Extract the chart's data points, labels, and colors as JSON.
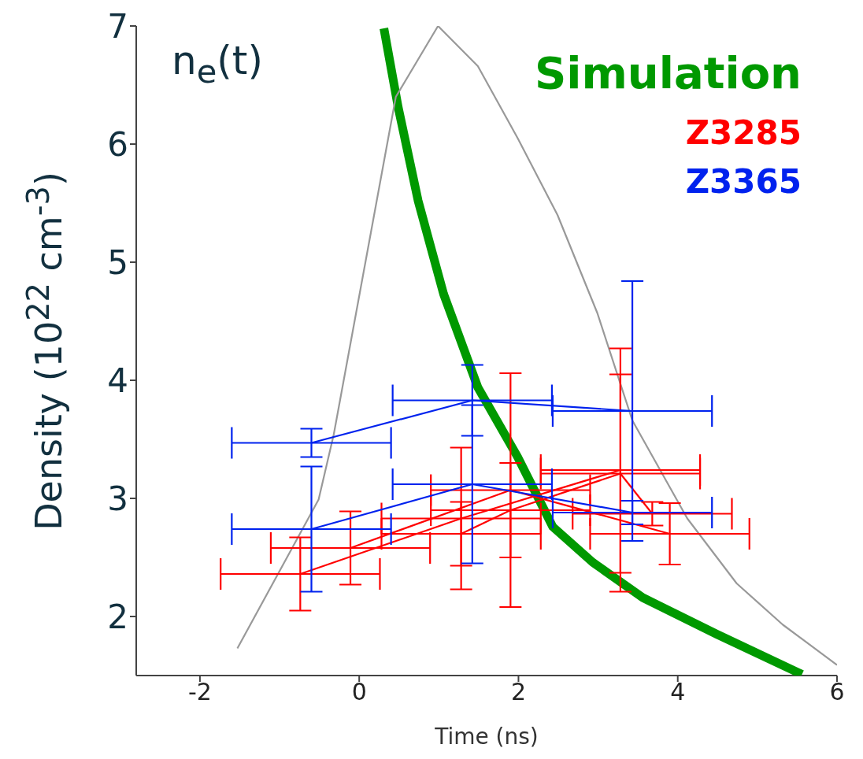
{
  "chart_data": {
    "type": "line",
    "xlabel": "Time (ns)",
    "ylabel": "Density (10$^{22}$ cm$^{-3}$)",
    "annotations": [
      "n$_{e}$(t)"
    ],
    "xlim": [
      -2.8,
      6
    ],
    "ylim": [
      1.5,
      7
    ],
    "xticks": [
      -2,
      0,
      2,
      4,
      6
    ],
    "yticks": [
      2,
      3,
      4,
      5,
      6,
      7
    ],
    "grid": false,
    "legend": "top right",
    "marker": "none",
    "series": [
      {
        "name": "Simulation",
        "color": "#009900",
        "x": [
          0.31,
          0.49,
          0.74,
          1.06,
          1.49,
          1.99,
          2.43,
          2.93,
          3.56,
          4.49,
          5.56
        ],
        "values": [
          6.98,
          6.31,
          5.52,
          4.73,
          3.94,
          3.35,
          2.76,
          2.46,
          2.16,
          1.85,
          1.51
        ]
      },
      {
        "color": "#999999",
        "x": [
          -1.53,
          -0.51,
          -0.32,
          0.46,
          0.99,
          1.49,
          1.99,
          2.49,
          2.99,
          3.43,
          4.12,
          4.74,
          5.32,
          6.0
        ],
        "values": [
          1.73,
          2.99,
          3.54,
          6.4,
          7.0,
          6.66,
          6.05,
          5.4,
          4.57,
          3.66,
          2.83,
          2.28,
          1.93,
          1.59
        ]
      },
      {
        "name": "Z3285",
        "color": "#ff0000",
        "x": [
          -0.74,
          1.28,
          3.28
        ],
        "values": [
          2.36,
          2.83,
          3.24
        ],
        "errors": [
          0.31,
          0.6,
          1.03
        ],
        "xerrors": [
          1.0,
          1.0,
          1.0
        ]
      },
      {
        "color": "#ff0000",
        "x": [
          -0.11,
          1.9,
          3.9
        ],
        "values": [
          2.58,
          3.07,
          2.7
        ],
        "errors": [
          0.31,
          0.99,
          0.26
        ],
        "xerrors": [
          1.0,
          1.0,
          1.0
        ]
      },
      {
        "color": "#ff0000",
        "x": [
          1.28,
          1.9,
          3.28,
          3.68
        ],
        "values": [
          2.7,
          2.9,
          3.21,
          2.87
        ],
        "errors": [
          0.27,
          0.4,
          0.84,
          0.1
        ],
        "xerrors": [
          1.0,
          1.0,
          1.0,
          1.0
        ]
      },
      {
        "name": "Z3365",
        "color": "#0022ee",
        "x": [
          -0.6,
          1.42,
          3.43
        ],
        "values": [
          3.47,
          3.83,
          3.74
        ],
        "errors": [
          0.12,
          0.3,
          1.1
        ],
        "xerrors": [
          1.0,
          1.0,
          1.0
        ]
      },
      {
        "color": "#0022ee",
        "x": [
          -0.6,
          1.42,
          3.43
        ],
        "values": [
          2.74,
          3.12,
          2.88
        ],
        "errors": [
          0.53,
          0.67,
          0.1
        ],
        "xerrors": [
          1.0,
          1.0,
          1.0
        ]
      }
    ]
  }
}
